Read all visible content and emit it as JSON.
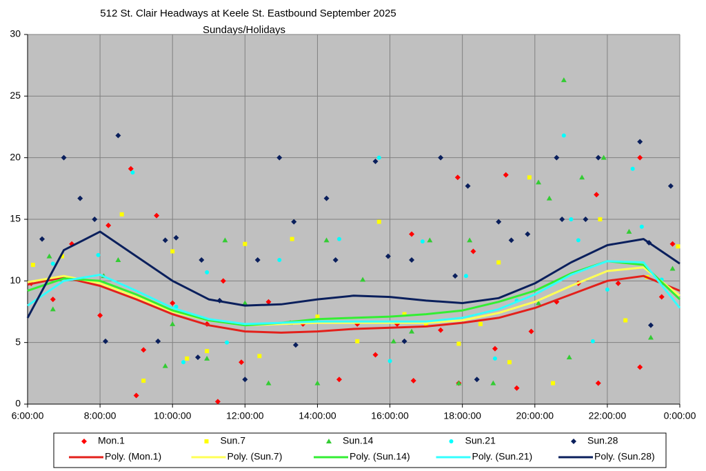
{
  "chart_data": {
    "type": "scatter",
    "title": "512 St. Clair Headways at Keele St. Eastbound September 2025",
    "subtitle": "Sundays/Holidays",
    "xlim": [
      6,
      24
    ],
    "xticks": [
      {
        "value": 6,
        "label": "6:00:00"
      },
      {
        "value": 8,
        "label": "8:00:00"
      },
      {
        "value": 10,
        "label": "10:00:00"
      },
      {
        "value": 12,
        "label": "12:00:00"
      },
      {
        "value": 14,
        "label": "14:00:00"
      },
      {
        "value": 16,
        "label": "16:00:00"
      },
      {
        "value": 18,
        "label": "18:00:00"
      },
      {
        "value": 20,
        "label": "20:00:00"
      },
      {
        "value": 22,
        "label": "22:00:00"
      },
      {
        "value": 24,
        "label": "0:00:00"
      }
    ],
    "ylim": [
      0,
      30
    ],
    "yticks": [
      0,
      5,
      10,
      15,
      20,
      25,
      30
    ],
    "grid": true,
    "legend": "bottom",
    "series": [
      {
        "name": "Mon.1",
        "type": "scatter",
        "marker": "diamond",
        "color": "#ff0000",
        "x": [
          8.85,
          9.56,
          8.23,
          7.22,
          16.6,
          17.87,
          19.2,
          21.7,
          22.9,
          22.9,
          11.25,
          9.0,
          6.1,
          6.7,
          8.0,
          9.2,
          10.0,
          10.95,
          11.4,
          11.9,
          12.65,
          13.6,
          14.6,
          15.1,
          15.6,
          16.2,
          16.65,
          17.4,
          17.9,
          18.3,
          18.9,
          19.5,
          19.9,
          20.6,
          21.2,
          21.75,
          22.3,
          23.5,
          23.8
        ],
        "values": [
          19.1,
          15.3,
          14.5,
          13.0,
          13.8,
          18.4,
          18.6,
          17.0,
          20.0,
          3.0,
          0.2,
          0.7,
          9.8,
          8.5,
          7.2,
          4.4,
          8.2,
          6.5,
          10.0,
          3.4,
          8.3,
          6.5,
          2.0,
          6.5,
          4.0,
          6.5,
          1.9,
          6.0,
          1.7,
          12.4,
          4.5,
          1.3,
          5.9,
          8.3,
          9.8,
          1.7,
          9.8,
          8.7,
          13.0
        ]
      },
      {
        "name": "Sun.7",
        "type": "scatter",
        "marker": "square",
        "color": "#ffff00",
        "x": [
          6.15,
          6.95,
          8.6,
          9.2,
          10.0,
          12.0,
          12.4,
          13.3,
          15.7,
          16.4,
          17.0,
          17.9,
          19.0,
          19.85,
          20.5,
          21.8,
          22.5,
          23.1,
          23.95,
          10.4,
          10.95,
          14.0,
          15.1,
          18.5,
          19.3
        ],
        "values": [
          11.3,
          12.0,
          15.4,
          1.9,
          12.4,
          13.0,
          3.9,
          13.4,
          14.8,
          7.3,
          6.5,
          4.9,
          11.5,
          18.4,
          1.7,
          15.0,
          6.8,
          10.3,
          12.8,
          3.7,
          4.3,
          7.1,
          5.1,
          6.5,
          3.4
        ]
      },
      {
        "name": "Sun.14",
        "type": "scatter",
        "marker": "triangle",
        "color": "#33cc33",
        "x": [
          6.6,
          8.5,
          9.8,
          10.95,
          11.45,
          12.65,
          14.25,
          14.0,
          15.25,
          16.1,
          17.1,
          17.9,
          18.2,
          18.85,
          20.1,
          20.4,
          20.8,
          21.3,
          21.9,
          22.6,
          23.2,
          23.8,
          6.7,
          8.1,
          10.0,
          12.0,
          13.25,
          16.6,
          20.1,
          20.95
        ],
        "values": [
          12.0,
          11.7,
          3.1,
          3.7,
          13.3,
          1.7,
          13.3,
          1.7,
          10.1,
          5.1,
          13.3,
          1.7,
          13.3,
          1.7,
          18.0,
          16.7,
          26.3,
          18.4,
          20.0,
          14.0,
          5.4,
          11.0,
          7.7,
          10.4,
          6.5,
          8.2,
          6.6,
          5.9,
          8.2,
          3.8
        ]
      },
      {
        "name": "Sun.21",
        "type": "scatter",
        "marker": "circle",
        "color": "#00ffff",
        "x": [
          8.9,
          6.7,
          7.95,
          10.1,
          10.95,
          12.95,
          14.6,
          15.7,
          16.9,
          18.1,
          19.5,
          20.8,
          21.0,
          21.2,
          21.6,
          22.7,
          22.95,
          10.3,
          11.5,
          16.0,
          18.9,
          22.0,
          23.5
        ],
        "values": [
          18.8,
          11.4,
          12.1,
          7.9,
          10.7,
          11.7,
          13.4,
          20.0,
          13.2,
          10.4,
          8.4,
          21.8,
          15.0,
          13.3,
          5.1,
          19.1,
          14.4,
          3.4,
          5.0,
          3.5,
          3.7,
          9.3,
          10.1
        ]
      },
      {
        "name": "Sun.28",
        "type": "scatter",
        "marker": "diamond",
        "color": "#0a1f5c",
        "x": [
          6.4,
          7.0,
          7.45,
          7.85,
          8.15,
          8.5,
          9.8,
          10.1,
          10.8,
          12.0,
          12.35,
          12.95,
          13.35,
          14.25,
          14.5,
          15.6,
          15.95,
          16.6,
          17.4,
          17.8,
          18.15,
          19.0,
          19.35,
          19.8,
          20.6,
          20.75,
          21.4,
          21.75,
          22.9,
          23.15,
          23.2,
          23.75,
          10.7,
          13.4,
          16.4,
          18.4,
          9.6,
          11.3
        ],
        "values": [
          13.4,
          20.0,
          16.7,
          15.0,
          5.1,
          21.8,
          13.3,
          13.5,
          11.7,
          2.0,
          11.7,
          20.0,
          14.8,
          16.7,
          11.7,
          19.7,
          12.0,
          11.7,
          20.0,
          10.4,
          17.7,
          14.8,
          13.3,
          13.8,
          20.0,
          15.0,
          15.0,
          20.0,
          21.3,
          13.1,
          6.4,
          17.7,
          3.8,
          4.8,
          5.1,
          2.0,
          5.1,
          8.4
        ]
      },
      {
        "name": "Poly. (Mon.1)",
        "type": "line",
        "color": "#e3201b",
        "x": [
          6,
          7,
          8,
          9,
          10,
          11,
          12,
          13,
          14,
          15,
          16,
          17,
          18,
          19,
          20,
          21,
          22,
          23,
          24
        ],
        "values": [
          9.7,
          10.3,
          9.6,
          8.5,
          7.3,
          6.4,
          5.9,
          5.8,
          5.9,
          6.1,
          6.2,
          6.3,
          6.6,
          7.0,
          7.8,
          8.9,
          10.0,
          10.4,
          9.2
        ]
      },
      {
        "name": "Poly. (Sun.7)",
        "type": "line",
        "color": "#ffff55",
        "x": [
          6,
          7,
          8,
          9,
          10,
          11,
          12,
          13,
          14,
          15,
          16,
          17,
          18,
          19,
          20,
          21,
          22,
          23,
          24
        ],
        "values": [
          9.9,
          10.4,
          9.8,
          8.7,
          7.5,
          6.8,
          6.4,
          6.5,
          6.6,
          6.6,
          6.6,
          6.6,
          6.8,
          7.4,
          8.3,
          9.6,
          10.8,
          11.1,
          8.8
        ]
      },
      {
        "name": "Poly. (Sun.14)",
        "type": "line",
        "color": "#33ee33",
        "x": [
          6,
          7,
          8,
          9,
          10,
          11,
          12,
          13,
          14,
          15,
          16,
          17,
          18,
          19,
          20,
          21,
          22,
          23,
          24
        ],
        "values": [
          9.2,
          10.2,
          10.0,
          8.9,
          7.6,
          6.8,
          6.4,
          6.6,
          6.9,
          7.0,
          7.1,
          7.3,
          7.6,
          8.3,
          9.2,
          10.6,
          11.6,
          11.3,
          8.5
        ]
      },
      {
        "name": "Poly. (Sun.21)",
        "type": "line",
        "color": "#33ffff",
        "x": [
          6,
          7,
          8,
          9,
          10,
          11,
          12,
          13,
          14,
          15,
          16,
          17,
          18,
          19,
          20,
          21,
          22,
          23,
          24
        ],
        "values": [
          8.0,
          10.0,
          10.5,
          9.2,
          7.8,
          6.9,
          6.5,
          6.6,
          6.7,
          6.7,
          6.7,
          6.7,
          7.0,
          7.7,
          8.9,
          10.5,
          11.6,
          11.5,
          7.8
        ]
      },
      {
        "name": "Poly. (Sun.28)",
        "type": "line",
        "color": "#0a1f5c",
        "x": [
          6,
          7,
          8,
          9,
          10,
          11,
          12,
          13,
          14,
          15,
          16,
          17,
          18,
          19,
          20,
          21,
          22,
          23,
          24
        ],
        "values": [
          7.0,
          12.5,
          14.0,
          12.0,
          10.0,
          8.5,
          8.0,
          8.1,
          8.5,
          8.8,
          8.7,
          8.4,
          8.2,
          8.6,
          9.8,
          11.5,
          12.9,
          13.4,
          11.4
        ]
      }
    ]
  }
}
